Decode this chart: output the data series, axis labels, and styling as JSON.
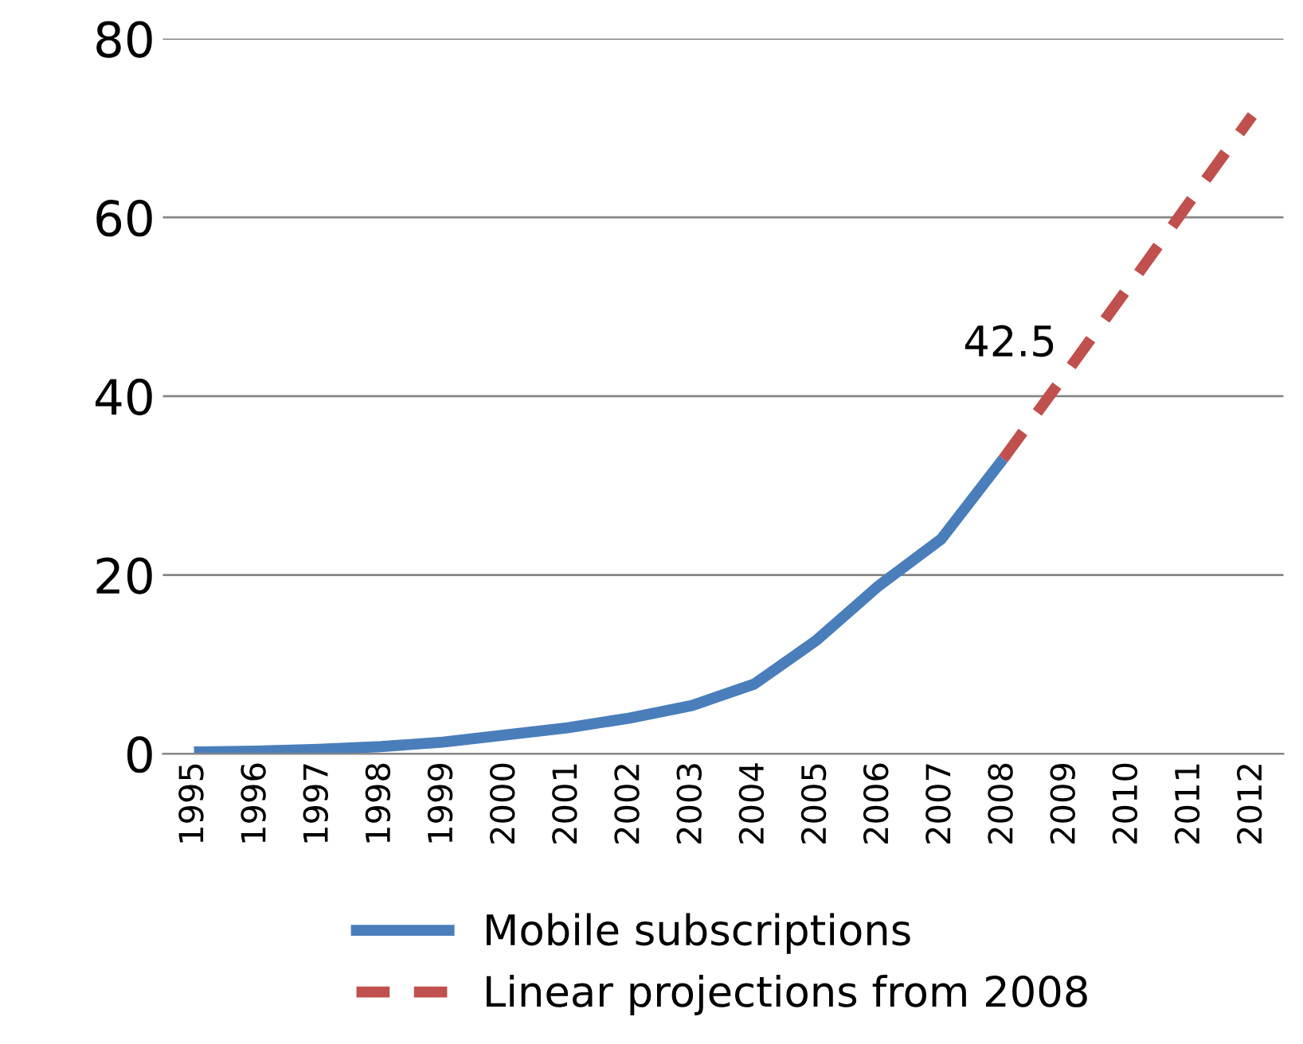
{
  "chart_data": {
    "type": "line",
    "categories": [
      "1995",
      "1996",
      "1997",
      "1998",
      "1999",
      "2000",
      "2001",
      "2002",
      "2003",
      "2004",
      "2005",
      "2006",
      "2007",
      "2008",
      "2009",
      "2010",
      "2011",
      "2012"
    ],
    "series": [
      {
        "name": "Mobile subscriptions",
        "color": "#4a7ebb",
        "line_style": "solid",
        "values": [
          0.2,
          0.3,
          0.5,
          0.8,
          1.3,
          2.1,
          2.9,
          4.0,
          5.4,
          7.8,
          12.7,
          18.8,
          24.0,
          33.0,
          null,
          null,
          null,
          null
        ]
      },
      {
        "name": "Linear projections from 2008",
        "color": "#c0504d",
        "line_style": "dashed",
        "values": [
          null,
          null,
          null,
          null,
          null,
          null,
          null,
          null,
          null,
          null,
          null,
          null,
          null,
          33.0,
          42.5,
          52.1,
          61.8,
          71.4
        ]
      }
    ],
    "annotations": [
      {
        "text": "42.5",
        "x": "2009",
        "y": 42.5
      }
    ],
    "ylim": [
      0,
      80
    ],
    "yticks": [
      0,
      20,
      40,
      60,
      80
    ],
    "grid": "y",
    "legend": "bottom",
    "marker": "none"
  }
}
